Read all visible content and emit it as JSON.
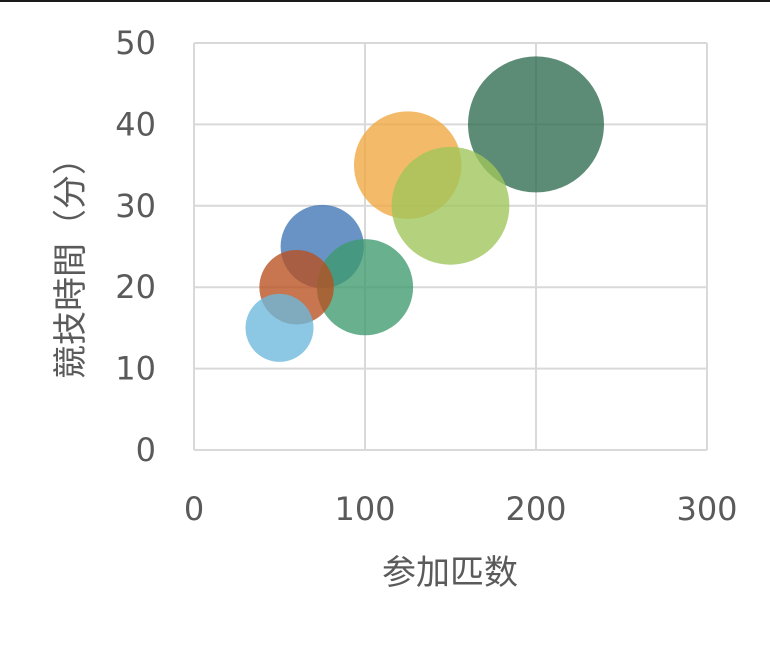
{
  "chart_data": {
    "type": "bubble",
    "title": "",
    "xlabel": "参加匹数",
    "ylabel": "競技時間（分）",
    "xlim": [
      0,
      300
    ],
    "ylim": [
      0,
      50
    ],
    "x_ticks": [
      "0",
      "100",
      "200",
      "300"
    ],
    "y_ticks": [
      "0",
      "10",
      "20",
      "30",
      "40",
      "50"
    ],
    "grid": true,
    "legend": "none",
    "points": [
      {
        "x": 200,
        "y": 40,
        "size": 200,
        "color": "#2e6b4f"
      },
      {
        "x": 125,
        "y": 35,
        "size": 125,
        "color": "#f0a640"
      },
      {
        "x": 150,
        "y": 30,
        "size": 150,
        "color": "#9fc55a"
      },
      {
        "x": 75,
        "y": 25,
        "size": 75,
        "color": "#3f74b5"
      },
      {
        "x": 100,
        "y": 20,
        "size": 100,
        "color": "#3e9a6e"
      },
      {
        "x": 60,
        "y": 20,
        "size": 60,
        "color": "#b8501f"
      },
      {
        "x": 50,
        "y": 15,
        "size": 50,
        "color": "#6cb8dc"
      }
    ]
  }
}
